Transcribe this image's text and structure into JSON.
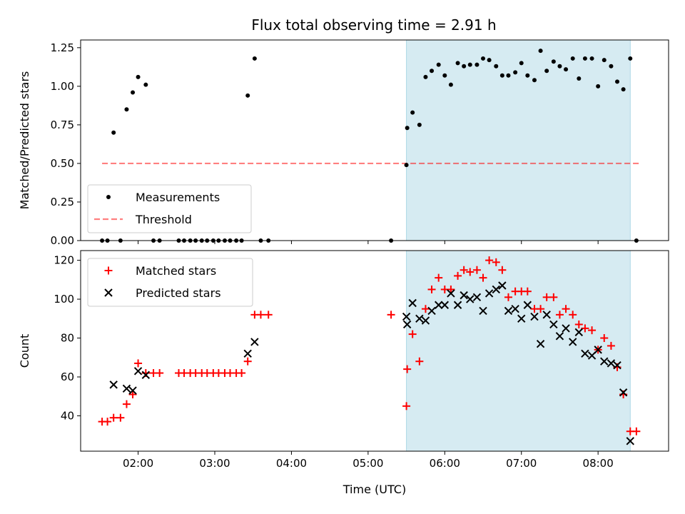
{
  "title": "Flux total observing time = 2.91 h",
  "colors": {
    "shade": "#add8e6",
    "measurement": "#000000",
    "threshold": "#ff0000",
    "matched": "#ff0000",
    "predicted": "#000000"
  },
  "chart_data": [
    {
      "type": "scatter",
      "panel": "top",
      "ylabel": "Matched/Predicted stars",
      "xlabel": "",
      "ylim": [
        0,
        1.3
      ],
      "yticks": [
        0.0,
        0.25,
        0.5,
        0.75,
        1.0,
        1.25
      ],
      "ytick_labels": [
        "0.00",
        "0.25",
        "0.50",
        "0.75",
        "1.00",
        "1.25"
      ],
      "xlim": [
        1.25,
        8.92
      ],
      "shaded_region": [
        5.5,
        8.42
      ],
      "legend": {
        "position": "lower-left",
        "entries": [
          "Measurements",
          "Threshold"
        ]
      },
      "threshold": {
        "name": "Threshold",
        "y": 0.5,
        "x_range": [
          1.53,
          8.53
        ]
      },
      "series": [
        {
          "name": "Measurements",
          "marker": "dot",
          "points": [
            [
              1.53,
              0
            ],
            [
              1.6,
              0
            ],
            [
              1.68,
              0.7
            ],
            [
              1.77,
              0
            ],
            [
              1.85,
              0.85
            ],
            [
              1.93,
              0.96
            ],
            [
              2.0,
              1.06
            ],
            [
              2.1,
              1.01
            ],
            [
              2.2,
              0
            ],
            [
              2.28,
              0
            ],
            [
              2.53,
              0
            ],
            [
              2.6,
              0
            ],
            [
              2.68,
              0
            ],
            [
              2.75,
              0
            ],
            [
              2.83,
              0
            ],
            [
              2.9,
              0
            ],
            [
              2.98,
              0
            ],
            [
              3.05,
              0
            ],
            [
              3.13,
              0
            ],
            [
              3.2,
              0
            ],
            [
              3.28,
              0
            ],
            [
              3.35,
              0
            ],
            [
              3.43,
              0.94
            ],
            [
              3.52,
              1.18
            ],
            [
              3.6,
              0
            ],
            [
              3.7,
              0
            ],
            [
              5.3,
              0
            ],
            [
              5.5,
              0.49
            ],
            [
              5.51,
              0.73
            ],
            [
              5.58,
              0.83
            ],
            [
              5.67,
              0.75
            ],
            [
              5.75,
              1.06
            ],
            [
              5.83,
              1.1
            ],
            [
              5.92,
              1.14
            ],
            [
              6.0,
              1.07
            ],
            [
              6.08,
              1.01
            ],
            [
              6.17,
              1.15
            ],
            [
              6.25,
              1.13
            ],
            [
              6.33,
              1.14
            ],
            [
              6.42,
              1.14
            ],
            [
              6.5,
              1.18
            ],
            [
              6.58,
              1.17
            ],
            [
              6.67,
              1.13
            ],
            [
              6.75,
              1.07
            ],
            [
              6.83,
              1.07
            ],
            [
              6.92,
              1.09
            ],
            [
              7.0,
              1.15
            ],
            [
              7.08,
              1.07
            ],
            [
              7.17,
              1.04
            ],
            [
              7.25,
              1.23
            ],
            [
              7.33,
              1.1
            ],
            [
              7.42,
              1.16
            ],
            [
              7.5,
              1.13
            ],
            [
              7.58,
              1.11
            ],
            [
              7.67,
              1.18
            ],
            [
              7.75,
              1.05
            ],
            [
              7.83,
              1.18
            ],
            [
              7.92,
              1.18
            ],
            [
              8.0,
              1.0
            ],
            [
              8.08,
              1.17
            ],
            [
              8.17,
              1.13
            ],
            [
              8.25,
              1.03
            ],
            [
              8.33,
              0.98
            ],
            [
              8.42,
              1.18
            ],
            [
              8.5,
              0
            ]
          ]
        }
      ]
    },
    {
      "type": "scatter",
      "panel": "bottom",
      "ylabel": "Count",
      "xlabel": "Time (UTC)",
      "ylim": [
        21.8,
        125
      ],
      "yticks": [
        40,
        60,
        80,
        100,
        120
      ],
      "ytick_labels": [
        "40",
        "60",
        "80",
        "100",
        "120"
      ],
      "xlim": [
        1.25,
        8.92
      ],
      "xticks": [
        2,
        3,
        4,
        5,
        6,
        7,
        8
      ],
      "xtick_labels": [
        "02:00",
        "03:00",
        "04:00",
        "05:00",
        "06:00",
        "07:00",
        "08:00"
      ],
      "shaded_region": [
        5.5,
        8.42
      ],
      "legend": {
        "position": "upper-left",
        "entries": [
          "Matched stars",
          "Predicted stars"
        ]
      },
      "series": [
        {
          "name": "Matched stars",
          "marker": "plus",
          "points": [
            [
              1.53,
              37
            ],
            [
              1.6,
              37
            ],
            [
              1.68,
              39
            ],
            [
              1.77,
              39
            ],
            [
              1.85,
              46
            ],
            [
              1.93,
              51
            ],
            [
              2.0,
              67
            ],
            [
              2.1,
              62
            ],
            [
              2.2,
              62
            ],
            [
              2.28,
              62
            ],
            [
              2.53,
              62
            ],
            [
              2.6,
              62
            ],
            [
              2.68,
              62
            ],
            [
              2.75,
              62
            ],
            [
              2.83,
              62
            ],
            [
              2.9,
              62
            ],
            [
              2.98,
              62
            ],
            [
              3.05,
              62
            ],
            [
              3.13,
              62
            ],
            [
              3.2,
              62
            ],
            [
              3.28,
              62
            ],
            [
              3.35,
              62
            ],
            [
              3.43,
              68
            ],
            [
              3.52,
              92
            ],
            [
              3.6,
              92
            ],
            [
              3.7,
              92
            ],
            [
              5.3,
              92
            ],
            [
              5.5,
              45
            ],
            [
              5.51,
              64
            ],
            [
              5.58,
              82
            ],
            [
              5.67,
              68
            ],
            [
              5.75,
              95
            ],
            [
              5.83,
              105
            ],
            [
              5.92,
              111
            ],
            [
              6.0,
              105
            ],
            [
              6.08,
              105
            ],
            [
              6.17,
              112
            ],
            [
              6.25,
              115
            ],
            [
              6.33,
              114
            ],
            [
              6.42,
              115
            ],
            [
              6.5,
              111
            ],
            [
              6.58,
              120
            ],
            [
              6.67,
              119
            ],
            [
              6.75,
              115
            ],
            [
              6.83,
              101
            ],
            [
              6.92,
              104
            ],
            [
              7.0,
              104
            ],
            [
              7.08,
              104
            ],
            [
              7.17,
              95
            ],
            [
              7.25,
              95
            ],
            [
              7.33,
              101
            ],
            [
              7.42,
              101
            ],
            [
              7.5,
              92
            ],
            [
              7.58,
              95
            ],
            [
              7.67,
              92
            ],
            [
              7.75,
              87
            ],
            [
              7.83,
              85
            ],
            [
              7.92,
              84
            ],
            [
              8.0,
              74
            ],
            [
              8.08,
              80
            ],
            [
              8.17,
              76
            ],
            [
              8.25,
              65
            ],
            [
              8.33,
              51
            ],
            [
              8.42,
              32
            ],
            [
              8.5,
              32
            ]
          ]
        },
        {
          "name": "Predicted stars",
          "marker": "x",
          "points": [
            [
              1.68,
              56
            ],
            [
              1.85,
              54
            ],
            [
              1.93,
              53
            ],
            [
              2.0,
              63
            ],
            [
              2.1,
              61
            ],
            [
              3.43,
              72
            ],
            [
              3.52,
              78
            ],
            [
              5.5,
              91
            ],
            [
              5.51,
              87
            ],
            [
              5.58,
              98
            ],
            [
              5.67,
              90
            ],
            [
              5.75,
              89
            ],
            [
              5.83,
              94
            ],
            [
              5.92,
              97
            ],
            [
              6.0,
              97
            ],
            [
              6.08,
              103
            ],
            [
              6.17,
              97
            ],
            [
              6.25,
              102
            ],
            [
              6.33,
              100
            ],
            [
              6.42,
              101
            ],
            [
              6.5,
              94
            ],
            [
              6.58,
              103
            ],
            [
              6.67,
              105
            ],
            [
              6.75,
              107
            ],
            [
              6.83,
              94
            ],
            [
              6.92,
              95
            ],
            [
              7.0,
              90
            ],
            [
              7.08,
              97
            ],
            [
              7.17,
              91
            ],
            [
              7.25,
              77
            ],
            [
              7.33,
              92
            ],
            [
              7.42,
              87
            ],
            [
              7.5,
              81
            ],
            [
              7.58,
              85
            ],
            [
              7.67,
              78
            ],
            [
              7.75,
              83
            ],
            [
              7.83,
              72
            ],
            [
              7.92,
              71
            ],
            [
              8.0,
              74
            ],
            [
              8.08,
              68
            ],
            [
              8.17,
              67
            ],
            [
              8.25,
              66
            ],
            [
              8.33,
              52
            ],
            [
              8.42,
              27
            ]
          ]
        }
      ]
    }
  ]
}
